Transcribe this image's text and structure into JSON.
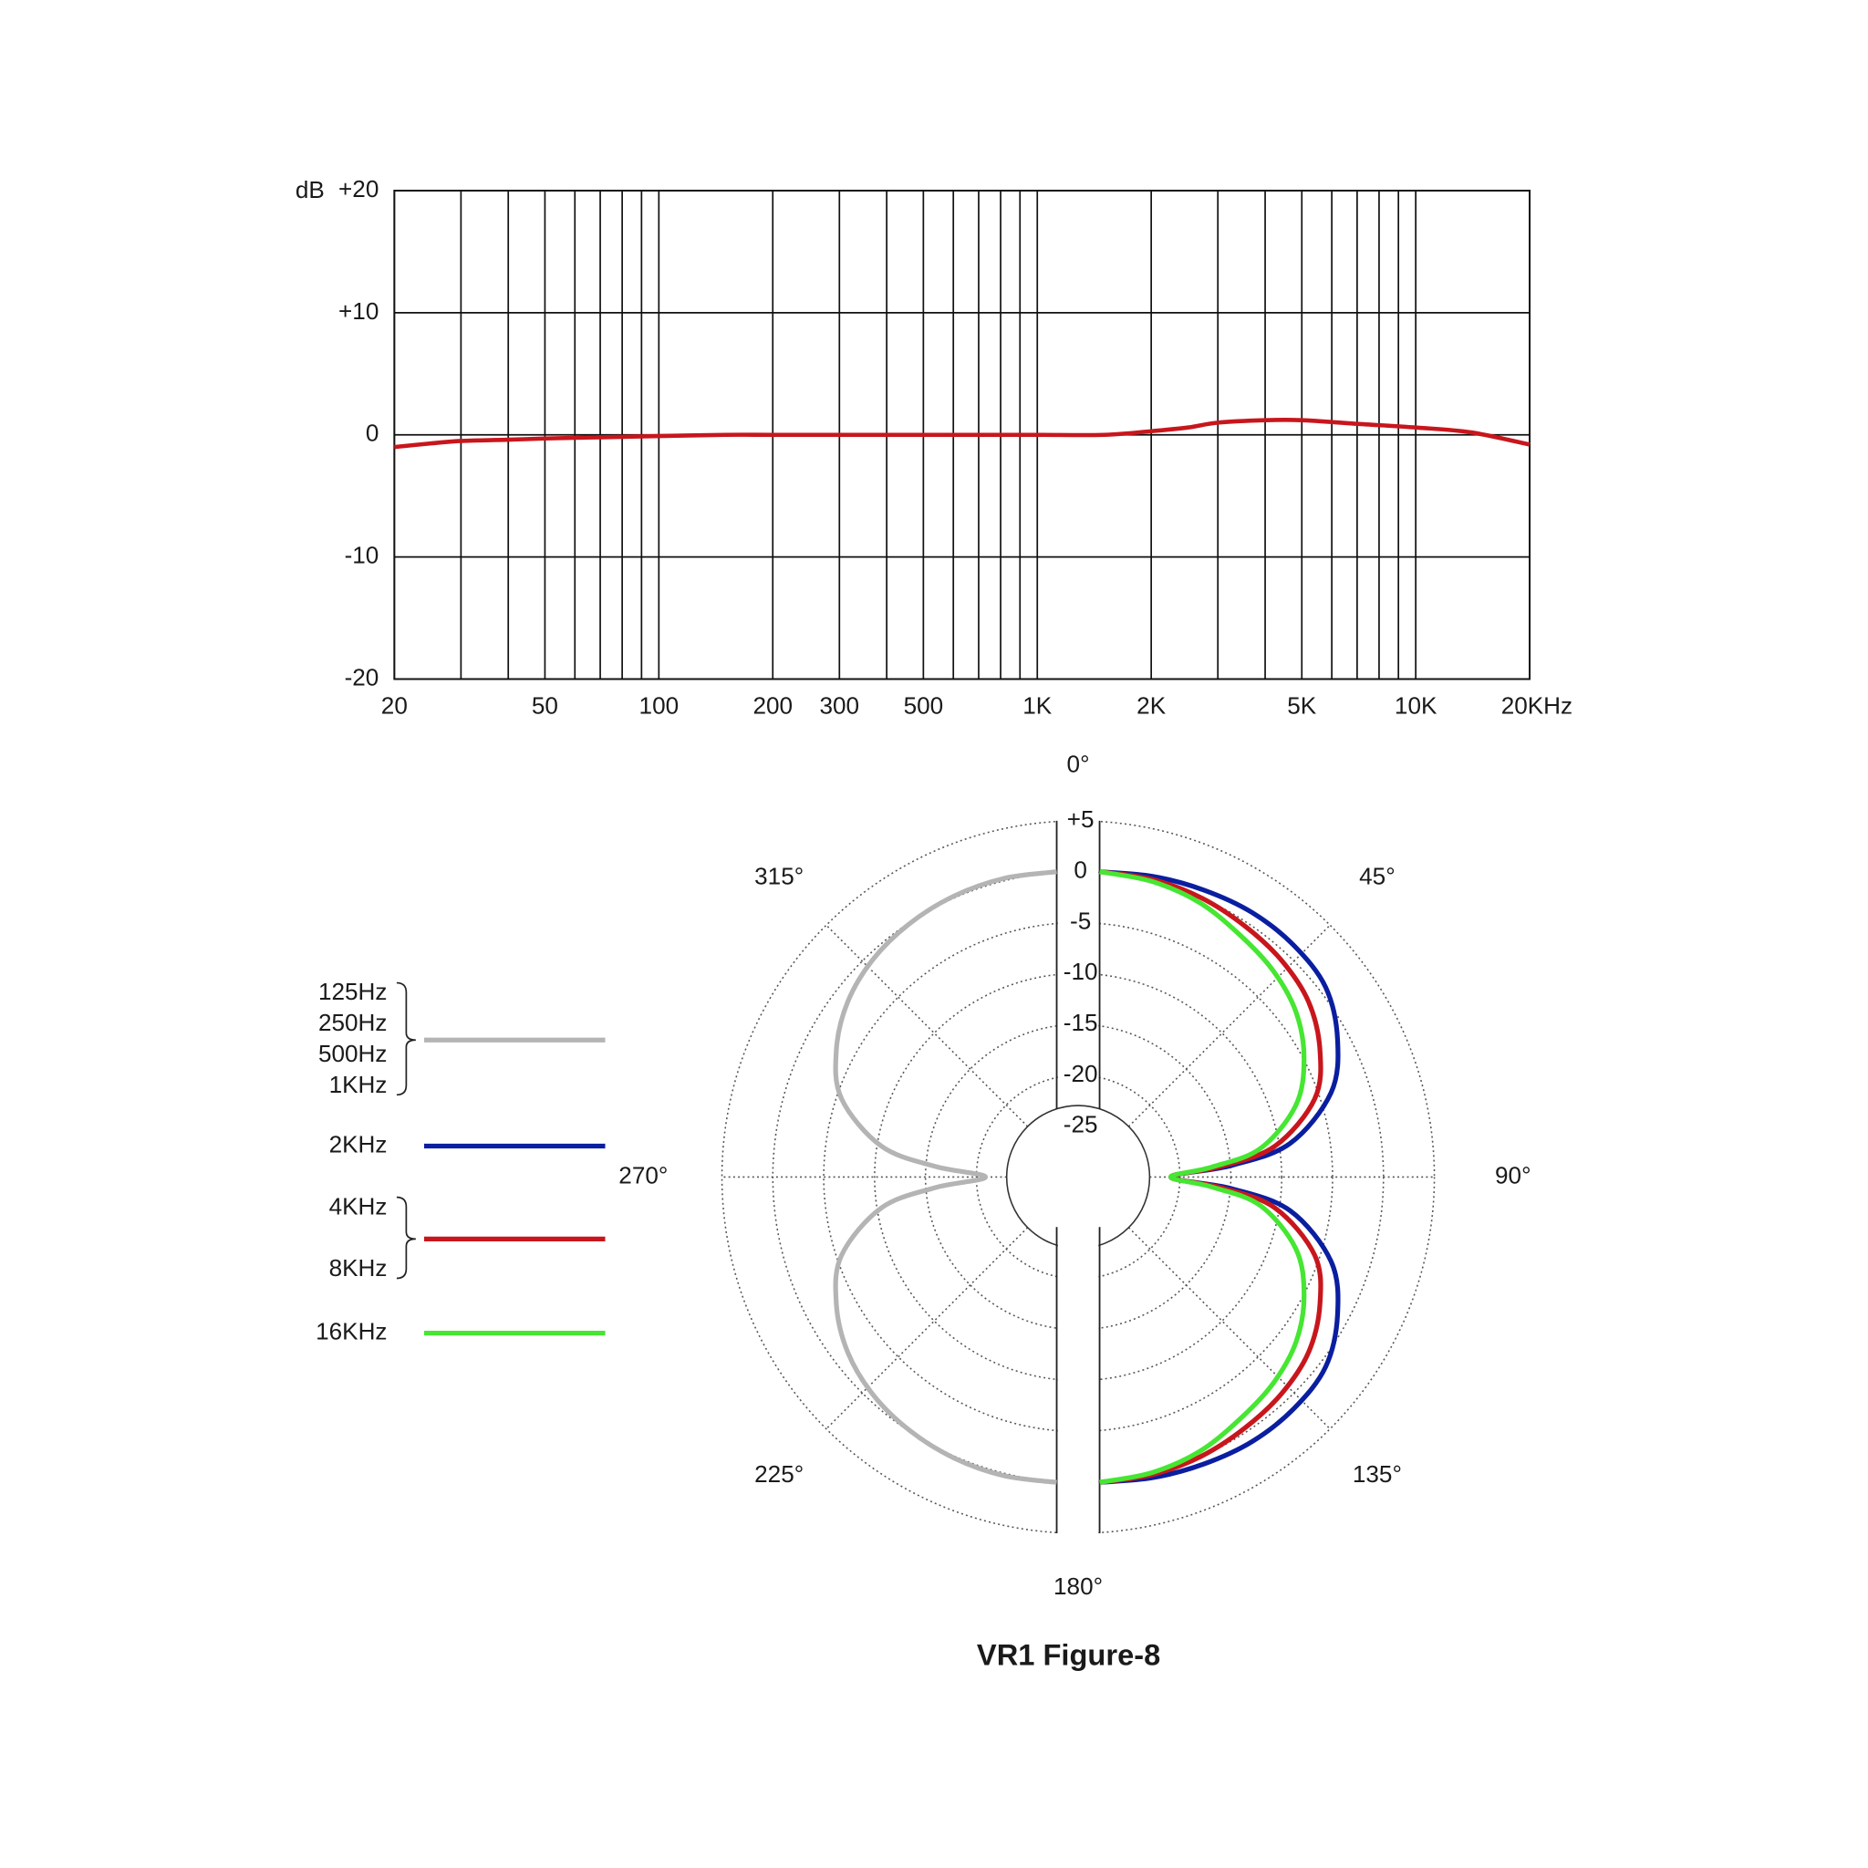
{
  "chart_data": [
    {
      "type": "line",
      "y_label": "dB",
      "xscale": "log",
      "grid": true,
      "xlim": [
        20,
        20000
      ],
      "ylim": [
        -20,
        20
      ],
      "xticks": [
        20,
        50,
        100,
        200,
        300,
        500,
        {
          "value": 1000,
          "label": "1K"
        },
        {
          "value": 2000,
          "label": "2K"
        },
        {
          "value": 5000,
          "label": "5K"
        },
        {
          "value": 10000,
          "label": "10K"
        },
        {
          "value": 20000,
          "label": "20KHz"
        }
      ],
      "minor_xticks": [
        30,
        40,
        60,
        70,
        80,
        90,
        400,
        600,
        700,
        800,
        900,
        3000,
        4000,
        6000,
        7000,
        8000,
        9000
      ],
      "yticks": [
        {
          "value": 20,
          "label": "+20"
        },
        {
          "value": 10,
          "label": "+10"
        },
        0,
        -10,
        -20
      ],
      "series": [
        {
          "color": "#c8161d",
          "x": [
            20,
            25,
            30,
            40,
            50,
            70,
            100,
            150,
            200,
            300,
            500,
            700,
            1000,
            1500,
            2000,
            2500,
            3000,
            4000,
            5000,
            7000,
            10000,
            14000,
            20000
          ],
          "values": [
            -1,
            -0.7,
            -0.5,
            -0.4,
            -0.3,
            -0.2,
            -0.1,
            0,
            0,
            0,
            0,
            0,
            0,
            0,
            0.3,
            0.6,
            1,
            1.2,
            1.2,
            0.9,
            0.6,
            0.2,
            -0.8
          ]
        }
      ]
    },
    {
      "type": "polar",
      "title": "VR1 Figure-8",
      "rlim": [
        -30,
        5
      ],
      "rticks": [
        {
          "value": 5,
          "label": "+5"
        },
        0,
        -5,
        -10,
        -15,
        -20,
        -25
      ],
      "angle_ticks": [
        {
          "value": 0,
          "label": "0°"
        },
        {
          "value": 45,
          "label": "45°"
        },
        {
          "value": 90,
          "label": "90°"
        },
        {
          "value": 135,
          "label": "135°"
        },
        {
          "value": 180,
          "label": "180°"
        },
        {
          "value": 225,
          "label": "225°"
        },
        {
          "value": 270,
          "label": "270°"
        },
        {
          "value": 315,
          "label": "315°"
        }
      ],
      "series": [
        {
          "names": [
            "125Hz",
            "250Hz",
            "500Hz",
            "1KHz"
          ],
          "color": "#b4b4b4",
          "angles": [
            180,
            190,
            200,
            210,
            220,
            230,
            240,
            250,
            260,
            265,
            270,
            275,
            280,
            290,
            300,
            310,
            320,
            330,
            340,
            350,
            360
          ],
          "values": [
            0,
            -0.2,
            -0.6,
            -1.2,
            -2,
            -3.2,
            -5,
            -7.5,
            -12.5,
            -18,
            -23,
            -18,
            -12.5,
            -7.5,
            -5,
            -3.2,
            -2,
            -1.2,
            -0.6,
            -0.2,
            0
          ]
        },
        {
          "names": [
            "2KHz"
          ],
          "color": "#0a1ea0",
          "angles": [
            0,
            10,
            20,
            30,
            40,
            50,
            60,
            70,
            80,
            85,
            90,
            95,
            100,
            110,
            120,
            130,
            140,
            150,
            160,
            170,
            180
          ],
          "values": [
            0,
            0,
            0,
            0,
            -0.3,
            -1,
            -3,
            -5.8,
            -11,
            -17,
            -23,
            -17,
            -11,
            -5.8,
            -3,
            -1,
            -0.3,
            0,
            0,
            0,
            0
          ]
        },
        {
          "names": [
            "4KHz",
            "8KHz"
          ],
          "color": "#c8161d",
          "angles": [
            0,
            10,
            20,
            30,
            40,
            50,
            60,
            70,
            80,
            85,
            90,
            95,
            100,
            110,
            120,
            130,
            140,
            150,
            160,
            170,
            180
          ],
          "values": [
            0,
            -0.3,
            -0.8,
            -1.5,
            -2.2,
            -3.2,
            -5,
            -7.5,
            -12.5,
            -18,
            -23,
            -18,
            -12.5,
            -7.5,
            -5,
            -3.2,
            -2.2,
            -1.5,
            -0.8,
            -0.3,
            0
          ]
        },
        {
          "names": [
            "16KHz"
          ],
          "color": "#46e632",
          "angles": [
            0,
            10,
            20,
            30,
            40,
            50,
            60,
            70,
            80,
            85,
            90,
            95,
            100,
            110,
            120,
            130,
            140,
            150,
            160,
            170,
            180
          ],
          "values": [
            0,
            -0.5,
            -1.3,
            -2.5,
            -3.5,
            -4.8,
            -6.8,
            -9.5,
            -14,
            -19,
            -23,
            -19,
            -14,
            -9.5,
            -6.8,
            -4.8,
            -3.5,
            -2.5,
            -1.3,
            -0.5,
            0
          ]
        }
      ]
    }
  ]
}
